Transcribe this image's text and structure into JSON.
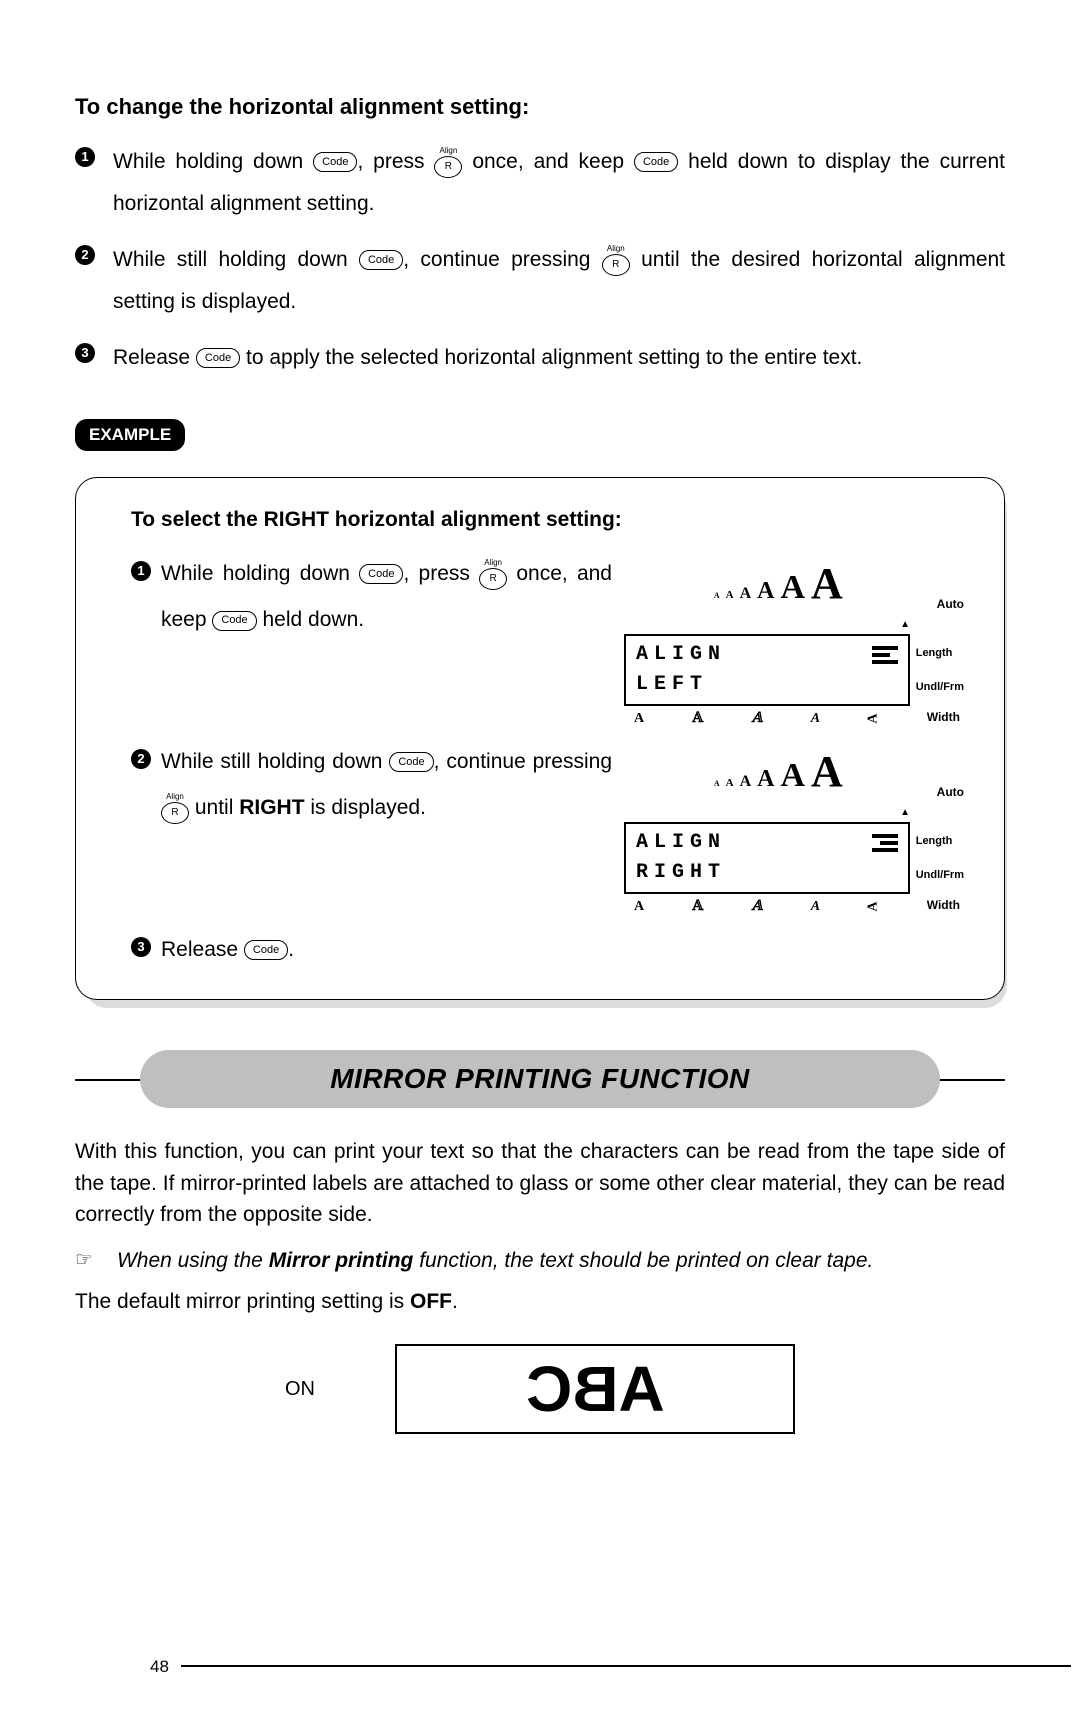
{
  "section1": {
    "heading": "To change the horizontal alignment setting:",
    "steps": [
      {
        "num": "1",
        "pre": "While holding down ",
        "k1": "Code",
        "mid1": ", press ",
        "k2top": "Align",
        "k2": "R",
        "mid2": " once, and keep ",
        "k3": "Code",
        "post": " held down to display the current horizontal alignment setting."
      },
      {
        "num": "2",
        "pre": "While still holding down ",
        "k1": "Code",
        "mid1": ", continue pressing ",
        "k2top": "Align",
        "k2": "R",
        "post": " until the desired horizontal alignment setting is displayed."
      },
      {
        "num": "3",
        "pre": "Release ",
        "k1": "Code",
        "post": " to apply the selected horizontal alignment setting to the entire text."
      }
    ]
  },
  "example": {
    "label": "EXAMPLE",
    "heading": "To select the RIGHT horizontal alignment setting:",
    "steps": [
      {
        "num": "1",
        "pre": "While holding down ",
        "k1": "Code",
        "mid1": ", press ",
        "k2top": "Align",
        "k2": "R",
        "mid2": " once, and keep ",
        "k3": "Code",
        "post": " held down."
      },
      {
        "num": "2",
        "pre": "While still holding down ",
        "k1": "Code",
        "mid1": ", continue pressing ",
        "k2top": "Align",
        "k2": "R",
        "mid2": " until ",
        "bold": "RIGHT",
        "post": " is displayed."
      },
      {
        "num": "3",
        "pre": "Release ",
        "k1": "Code",
        "post": "."
      }
    ],
    "lcd1": {
      "line1": "ALIGN",
      "line2": "LEFT",
      "align": "left"
    },
    "lcd2": {
      "line1": "ALIGN",
      "line2": "RIGHT",
      "align": "right"
    },
    "sideLabels": {
      "auto": "Auto",
      "length": "Length",
      "undlfrm": "Undl/Frm",
      "width": "Width"
    },
    "bottomA": [
      "A",
      "𝔸",
      "𝔸",
      "A",
      "A"
    ]
  },
  "section2": {
    "banner": "MIRROR PRINTING FUNCTION",
    "p1": "With this function, you can print your text so that the characters can be read from the tape side of the tape. If mirror-printed labels are attached to glass or some other clear material, they can be read correctly from the opposite side.",
    "noteIcon": "☞",
    "note_pre": "When using the ",
    "note_bold": "Mirror printing",
    "note_post": " function, the text should be printed on clear tape.",
    "p2_pre": "The default mirror printing setting is ",
    "p2_bold": "OFF",
    "p2_post": ".",
    "mirror": {
      "label": "ON",
      "text": "ABC"
    }
  },
  "pageNumber": "48",
  "colors": {
    "bannerBg": "#bfbfbf",
    "shadow": "#dcdcdc"
  }
}
